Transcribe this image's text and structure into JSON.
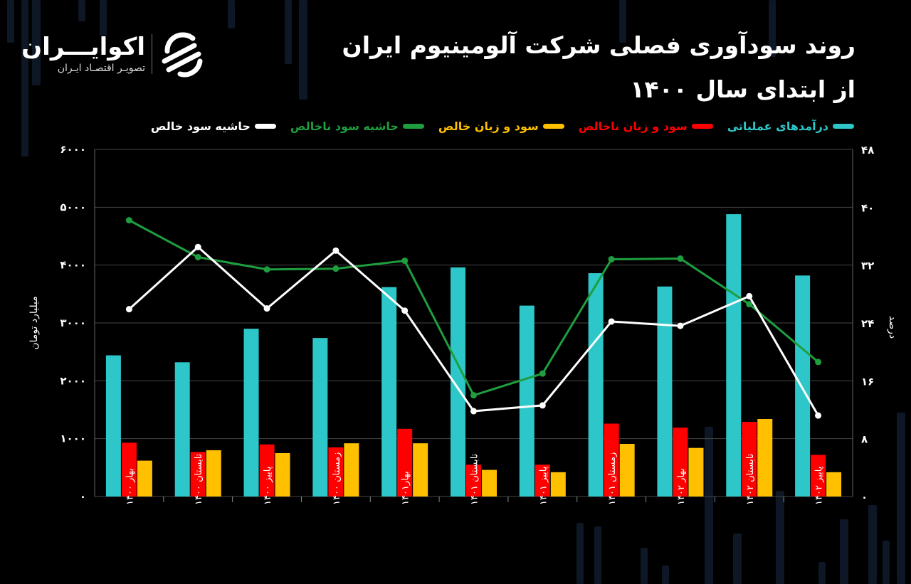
{
  "header": {
    "title_line1": "روند سودآوری فصلی شرکت آلومینیوم ایران",
    "title_line2": "از ابتدای سال ۱۴۰۰"
  },
  "logo": {
    "name": "اکوایـــران",
    "tagline": "تصویـر اقتصـاد ایـران",
    "icon": "ecoiran-swirl-icon"
  },
  "colors": {
    "background": "#000000",
    "operating_revenue": "#2ec7c9",
    "gross_profit": "#ff0000",
    "net_profit": "#ffc000",
    "gross_margin": "#1e9e3e",
    "net_margin": "#ffffff",
    "grid": "#444444"
  },
  "chart_data": {
    "type": "bar",
    "categories": [
      "بهار ۱۴۰۰",
      "تابستان ۱۴۰۰",
      "پاییز ۱۴۰۰",
      "زمستان ۱۴۰۰",
      "بهار۱۴۰۱",
      "تابستان ۱۴۰۱",
      "پاییز ۱۴۰۱",
      "زمستان ۱۴۰۱",
      "بهار ۱۴۰۲",
      "تابستان ۱۴۰۲",
      "پاییز ۱۴۰۲"
    ],
    "series": [
      {
        "name": "درآمدهای عملیاتی",
        "axis": "left",
        "kind": "bar",
        "color": "#2ec7c9",
        "values": [
          2440,
          2320,
          2900,
          2740,
          3620,
          3960,
          3300,
          3860,
          3630,
          4880,
          3820
        ]
      },
      {
        "name": "سود و زیان ناخالص",
        "axis": "left",
        "kind": "bar",
        "color": "#ff0000",
        "values": [
          930,
          770,
          900,
          850,
          1170,
          550,
          550,
          1260,
          1190,
          1290,
          720
        ]
      },
      {
        "name": "سود و زیان خالص",
        "axis": "left",
        "kind": "bar",
        "color": "#ffc000",
        "values": [
          620,
          800,
          750,
          920,
          920,
          460,
          420,
          910,
          840,
          1340,
          420
        ]
      },
      {
        "name": "حاشیه سود ناخالص",
        "axis": "right",
        "kind": "line",
        "color": "#1e9e3e",
        "values": [
          38.2,
          33.1,
          31.4,
          31.5,
          32.6,
          14.0,
          17.0,
          32.8,
          32.9,
          26.6,
          18.6
        ]
      },
      {
        "name": "حاشیه سود خالص",
        "axis": "right",
        "kind": "line",
        "color": "#ffffff",
        "values": [
          25.9,
          34.5,
          26.0,
          34.0,
          25.7,
          11.8,
          12.6,
          24.2,
          23.6,
          27.7,
          11.2
        ]
      }
    ],
    "ylabel": "میلیارد تومان",
    "y2label": "درصد",
    "ylim": [
      0,
      6000
    ],
    "y2lim": [
      0,
      48
    ],
    "yticks": [
      0,
      1000,
      2000,
      3000,
      4000,
      5000,
      6000
    ],
    "yticklabels": [
      "۰",
      "۱۰۰۰",
      "۲۰۰۰",
      "۳۰۰۰",
      "۴۰۰۰",
      "۵۰۰۰",
      "۶۰۰۰"
    ],
    "y2ticks": [
      0,
      8,
      16,
      24,
      32,
      40,
      48
    ],
    "y2ticklabels": [
      "۰",
      "۸",
      "۱۶",
      "۲۴",
      "۳۲",
      "۴۰",
      "۴۸"
    ],
    "grid": true,
    "legend": "top"
  }
}
